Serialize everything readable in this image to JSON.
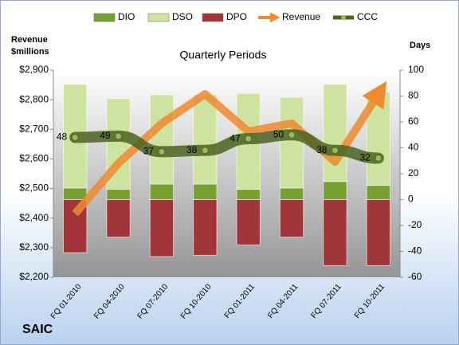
{
  "chart_data": {
    "type": "combo",
    "title": "Quarterly Periods",
    "y_label": [
      "Revenue",
      "$millions"
    ],
    "y2_label": "Days",
    "footer": "SAIC",
    "categories": [
      "FQ 01-2010",
      "FQ 04-2010",
      "FQ 07-2010",
      "FQ 10-2010",
      "FQ 01-2011",
      "FQ 04-2011",
      "FQ 07-2011",
      "FQ 10-2011"
    ],
    "ylim": [
      2200,
      2900
    ],
    "yticks": [
      {
        "value": 2200,
        "label": "$2,200"
      },
      {
        "value": 2300,
        "label": "$2,300"
      },
      {
        "value": 2400,
        "label": "$2,400"
      },
      {
        "value": 2500,
        "label": "$2,500"
      },
      {
        "value": 2600,
        "label": "$2,600"
      },
      {
        "value": 2700,
        "label": "$2,700"
      },
      {
        "value": 2800,
        "label": "$2,800"
      },
      {
        "value": 2900,
        "label": "$2,900"
      }
    ],
    "y2lim": [
      -60,
      100
    ],
    "y2ticks": [
      -60,
      -40,
      -20,
      0,
      20,
      40,
      60,
      80,
      100
    ],
    "series": [
      {
        "name": "DIO",
        "type": "bar",
        "axis": "y2",
        "color": "#77a033",
        "values": [
          9,
          8,
          12,
          12,
          8,
          9,
          14,
          11
        ]
      },
      {
        "name": "DSO",
        "type": "bar",
        "axis": "y2",
        "color": "#cfe3a0",
        "values": [
          80,
          70,
          69,
          69,
          74,
          70,
          75,
          72
        ]
      },
      {
        "name": "DPO",
        "type": "bar",
        "axis": "y2",
        "color": "#a0353a",
        "values": [
          -41,
          -29,
          -44,
          -43,
          -35,
          -29,
          -51,
          -51
        ]
      },
      {
        "name": "Revenue",
        "type": "arrow",
        "axis": "y",
        "color": "#f08a30",
        "values": [
          2415,
          2585,
          2720,
          2819,
          2693,
          2720,
          2590,
          2819
        ]
      },
      {
        "name": "CCC",
        "type": "line",
        "axis": "y2",
        "color": "#4a6422",
        "values": [
          48,
          49,
          37,
          38,
          47,
          50,
          38,
          32
        ]
      }
    ]
  }
}
